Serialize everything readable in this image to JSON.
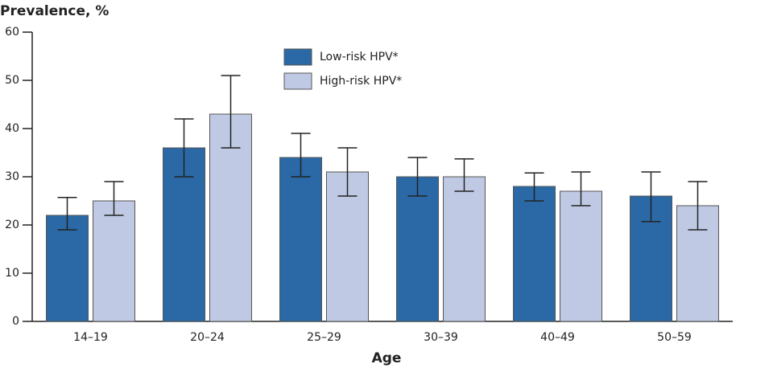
{
  "chart_data": {
    "type": "bar",
    "y_label": "Prevalence, %",
    "x_label": "Age",
    "categories": [
      "14–19",
      "20–24",
      "25–29",
      "30–39",
      "40–49",
      "50–59"
    ],
    "series": [
      {
        "name": "Low-risk HPV*",
        "color": "#2a69a5",
        "values": [
          22,
          36,
          34,
          30,
          28,
          26
        ],
        "ci_low": [
          19,
          30,
          30,
          26,
          25,
          20.7
        ],
        "ci_high": [
          25.7,
          42,
          39,
          34,
          30.8,
          31
        ]
      },
      {
        "name": "High-risk HPV*",
        "color": "#bfc9e3",
        "values": [
          25,
          43,
          31,
          30,
          27,
          24
        ],
        "ci_low": [
          22,
          36,
          26,
          27,
          24,
          19
        ],
        "ci_high": [
          29,
          51,
          36,
          33.7,
          31,
          29
        ]
      }
    ],
    "ylim": [
      0,
      60
    ],
    "yticks": [
      0,
      10,
      20,
      30,
      40,
      50,
      60
    ]
  }
}
